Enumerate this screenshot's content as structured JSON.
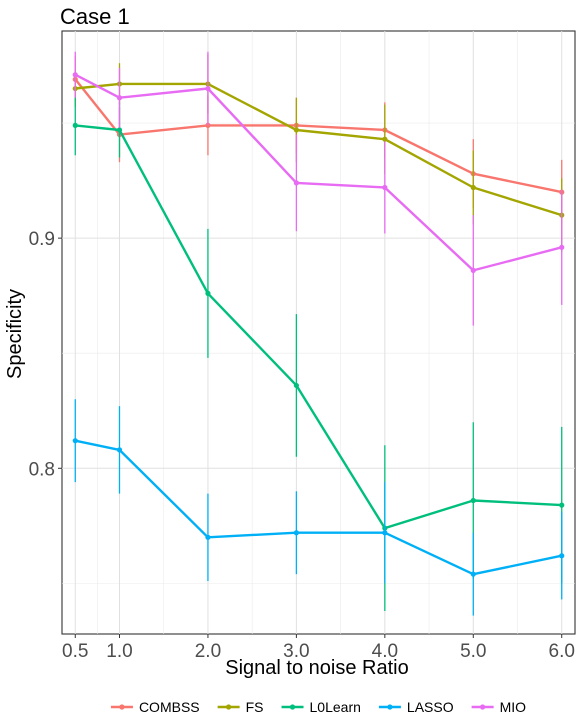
{
  "chart_data": {
    "type": "line",
    "title": "Case 1",
    "xlabel": "Signal to noise Ratio",
    "ylabel": "Specificity",
    "x": [
      0.5,
      1.0,
      2.0,
      3.0,
      4.0,
      5.0,
      6.0
    ],
    "x_tick_labels": [
      "0.5",
      "1.0",
      "2.0",
      "3.0",
      "4.0",
      "5.0",
      "6.0"
    ],
    "y_ticks": [
      0.8,
      0.9
    ],
    "y_tick_labels": [
      "0.8",
      "0.9"
    ],
    "xlim": [
      0.35,
      6.15
    ],
    "ylim": [
      0.728,
      0.99
    ],
    "grid": true,
    "legend_position": "bottom",
    "series": [
      {
        "name": "COMBSS",
        "color": "#F8766D",
        "values": [
          0.969,
          0.945,
          0.949,
          0.949,
          0.947,
          0.928,
          0.92
        ],
        "err": [
          0.01,
          0.012,
          0.013,
          0.012,
          0.012,
          0.015,
          0.014
        ]
      },
      {
        "name": "FS",
        "color": "#A3A500",
        "values": [
          0.965,
          0.967,
          0.967,
          0.947,
          0.943,
          0.922,
          0.91
        ],
        "err": [
          0.008,
          0.009,
          0.013,
          0.014,
          0.015,
          0.016,
          0.016
        ]
      },
      {
        "name": "L0Learn",
        "color": "#00BF7D",
        "values": [
          0.949,
          0.947,
          0.876,
          0.836,
          0.774,
          0.786,
          0.784
        ],
        "err": [
          0.013,
          0.012,
          0.028,
          0.031,
          0.036,
          0.034,
          0.034
        ]
      },
      {
        "name": "LASSO",
        "color": "#00B0F6",
        "values": [
          0.812,
          0.808,
          0.77,
          0.772,
          0.772,
          0.754,
          0.762
        ],
        "err": [
          0.018,
          0.019,
          0.019,
          0.018,
          0.022,
          0.018,
          0.019
        ]
      },
      {
        "name": "MIO",
        "color": "#E76BF3",
        "values": [
          0.971,
          0.961,
          0.965,
          0.924,
          0.922,
          0.886,
          0.896
        ],
        "err": [
          0.01,
          0.013,
          0.016,
          0.021,
          0.02,
          0.024,
          0.025
        ]
      }
    ]
  }
}
